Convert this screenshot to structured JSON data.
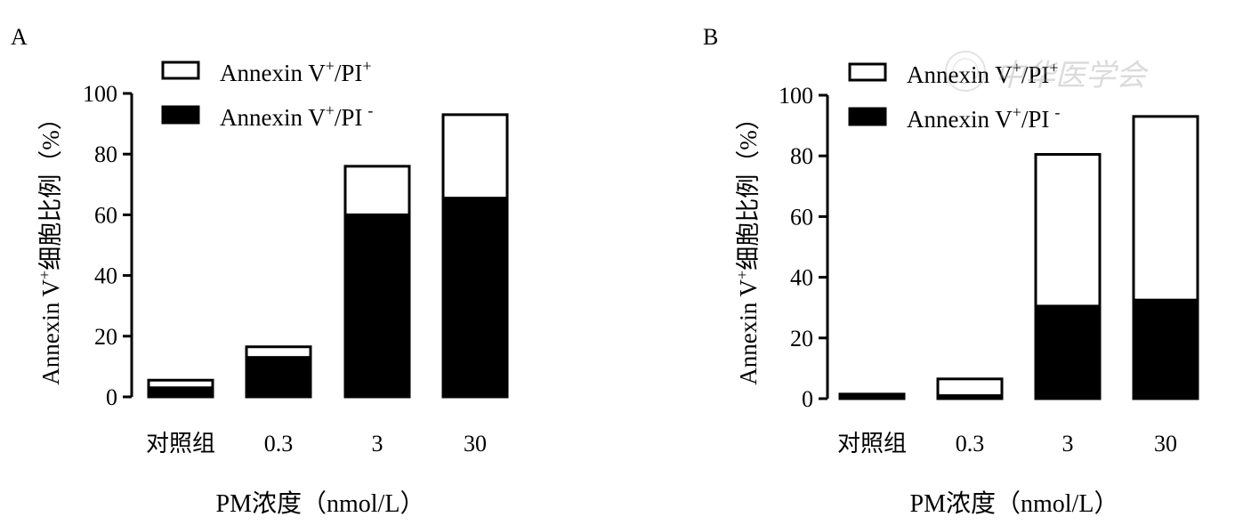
{
  "chart_data": [
    {
      "panel_label": "A",
      "type": "bar",
      "stacked": true,
      "categories": [
        "对照组",
        "0.3",
        "3",
        "30"
      ],
      "series": [
        {
          "name": "Annexin V+/PI−",
          "color": "#000000",
          "values": [
            3,
            13,
            60,
            65.5
          ]
        },
        {
          "name": "Annexin V+/PI+",
          "color": "#ffffff",
          "values": [
            2.5,
            3.5,
            16,
            27.5
          ]
        }
      ],
      "totals": [
        5.5,
        16.5,
        76,
        93
      ],
      "ylim": [
        0,
        100
      ],
      "yticks": [
        0,
        20,
        40,
        60,
        80,
        100
      ],
      "legend": [
        "Annexin V+/PI+",
        "Annexin V+/PI−"
      ],
      "xlabel": "PM浓度（nmol/L）",
      "ylabel": "Annexin V+细胞比例（%）"
    },
    {
      "panel_label": "B",
      "type": "bar",
      "stacked": true,
      "categories": [
        "对照组",
        "0.3",
        "3",
        "30"
      ],
      "series": [
        {
          "name": "Annexin V+/PI−",
          "color": "#000000",
          "values": [
            1.5,
            1,
            30.5,
            32.5
          ]
        },
        {
          "name": "Annexin V+/PI+",
          "color": "#ffffff",
          "values": [
            0,
            5.5,
            50,
            60.5
          ]
        }
      ],
      "totals": [
        1.5,
        6.5,
        80.5,
        93
      ],
      "ylim": [
        0,
        100
      ],
      "yticks": [
        0,
        20,
        40,
        60,
        80,
        100
      ],
      "legend": [
        "Annexin V+/PI+",
        "Annexin V+/PI−"
      ],
      "xlabel": "PM浓度（nmol/L）",
      "ylabel": "Annexin V+细胞比例（%）"
    }
  ],
  "legend_parts": {
    "prefix": "Annexin V",
    "sup_plus": "+",
    "mid": "/PI",
    "sup_minus": "-"
  },
  "ylabel_parts": {
    "pre": "Annexin V",
    "sup": "+",
    "post": "细胞比例（%）"
  },
  "watermark": "中华医学会"
}
